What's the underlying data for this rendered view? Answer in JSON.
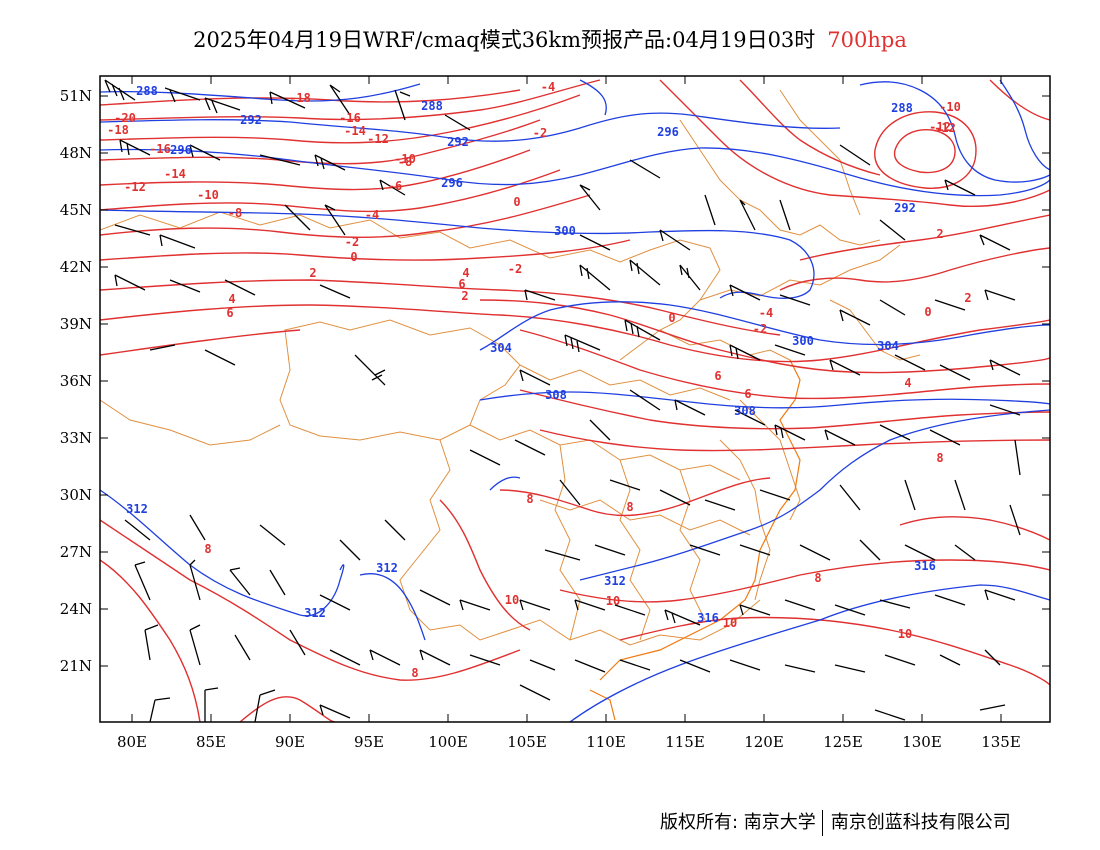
{
  "title": {
    "main": "2025年04月19日WRF/cmaq模式36km预报产品:04月19日03时",
    "level": "700hpa"
  },
  "axes": {
    "lat_labels": [
      "51N",
      "48N",
      "45N",
      "42N",
      "39N",
      "36N",
      "33N",
      "30N",
      "27N",
      "24N",
      "21N"
    ],
    "lon_labels": [
      "80E",
      "85E",
      "90E",
      "95E",
      "100E",
      "105E",
      "110E",
      "115E",
      "120E",
      "125E",
      "130E",
      "135E"
    ]
  },
  "colors": {
    "temperature": "#e03030",
    "height": "#1f3fe0",
    "boundary": "#e09040",
    "wind": "#000000"
  },
  "contour_labels": {
    "temperature": [
      "-20",
      "-18",
      "-18",
      "-16",
      "-16",
      "-14",
      "-14",
      "-12",
      "-12",
      "-12",
      "-10",
      "-10",
      "-8",
      "-6",
      "-4",
      "-4",
      "-2",
      "-2",
      "-2",
      "0",
      "0",
      "0",
      "2",
      "2",
      "2",
      "4",
      "4",
      "4",
      "6",
      "6",
      "6",
      "6",
      "8",
      "8",
      "8",
      "8",
      "8",
      "8",
      "10",
      "10",
      "10",
      "10",
      "-8",
      "-10",
      "-12",
      "-4",
      "-2",
      "0",
      "2"
    ],
    "height": [
      "288",
      "292",
      "296",
      "292",
      "296",
      "300",
      "304",
      "308",
      "312",
      "312",
      "312",
      "316",
      "316",
      "300",
      "304",
      "308",
      "312",
      "296",
      "292",
      "288",
      "288"
    ]
  },
  "footer": {
    "left": "版权所有: 南京大学",
    "right": "南京创蓝科技有限公司"
  }
}
